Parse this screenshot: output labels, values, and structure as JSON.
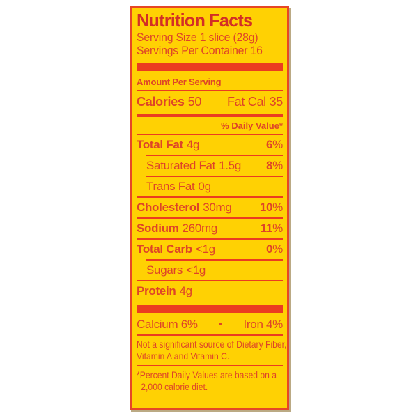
{
  "colors": {
    "page_bg": "#ffffff",
    "label_bg": "#ffd103",
    "title_red": "#d32e26",
    "text_red": "#de4428",
    "accent_red": "#eb3c20",
    "border_red": "#e64726"
  },
  "label": {
    "title": "Nutrition Facts",
    "serving_size": "Serving Size 1 slice (28g)",
    "servings_per_container": "Servings Per Container 16",
    "amount_per_serving": "Amount Per Serving",
    "calories_label": "Calories",
    "calories_value": "50",
    "fat_calories": "Fat Cal 35",
    "daily_value_header": "% Daily Value*",
    "rows": [
      {
        "name": "Total Fat",
        "amount": "4g",
        "dv": "6",
        "pct": "%"
      },
      {
        "name": "Saturated Fat",
        "amount": "1.5g",
        "dv": "8",
        "pct": "%"
      },
      {
        "name": "Trans Fat",
        "amount": "0g"
      },
      {
        "name": "Cholesterol",
        "amount": "30mg",
        "dv": "10",
        "pct": "%"
      },
      {
        "name": "Sodium",
        "amount": "260mg",
        "dv": "11",
        "pct": "%"
      },
      {
        "name": "Total Carb",
        "amount": "<1g",
        "dv": "0",
        "pct": "%"
      },
      {
        "name": "Sugars",
        "amount": "<1g"
      },
      {
        "name": "Protein",
        "amount": "4g"
      }
    ],
    "minerals": {
      "calcium": "Calcium 6%",
      "separator": "•",
      "iron": "Iron 4%"
    },
    "not_significant_line1": "Not a significant source of Dietary Fiber,",
    "not_significant_line2": "Vitamin A and Vitamin C.",
    "footnote_line1": "*Percent Daily Values are based on a",
    "footnote_line2": "2,000 calorie diet."
  }
}
